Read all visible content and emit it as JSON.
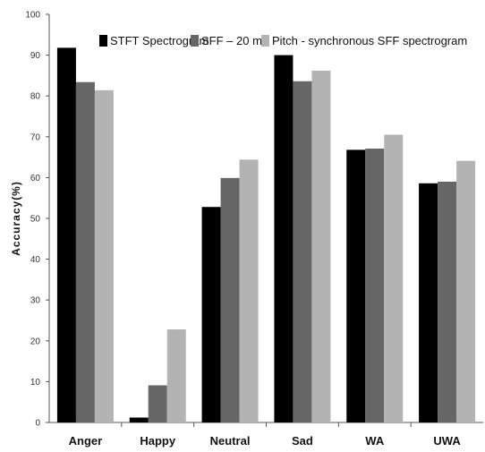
{
  "chart_data": {
    "type": "bar",
    "title": "",
    "xlabel": "",
    "ylabel": "Accuracy(%)",
    "ylim": [
      0,
      100
    ],
    "yticks": [
      0,
      10,
      20,
      30,
      40,
      50,
      60,
      70,
      80,
      90,
      100
    ],
    "grid": false,
    "legend_position": "top-right",
    "categories": [
      "Anger",
      "Happy",
      "Neutral",
      "Sad",
      "WA",
      "UWA"
    ],
    "series": [
      {
        "name": "STFT Spectrogram",
        "color": "#000000",
        "values": [
          91.8,
          1.2,
          52.8,
          90.0,
          66.8,
          58.6
        ]
      },
      {
        "name": "SFF – 20 ms",
        "color": "#666666",
        "values": [
          83.4,
          9.1,
          59.9,
          83.6,
          67.1,
          59.0
        ]
      },
      {
        "name": "Pitch - synchronous SFF spectrogram",
        "color": "#b3b3b3",
        "values": [
          81.4,
          22.8,
          64.4,
          86.2,
          70.5,
          64.1
        ]
      }
    ]
  }
}
